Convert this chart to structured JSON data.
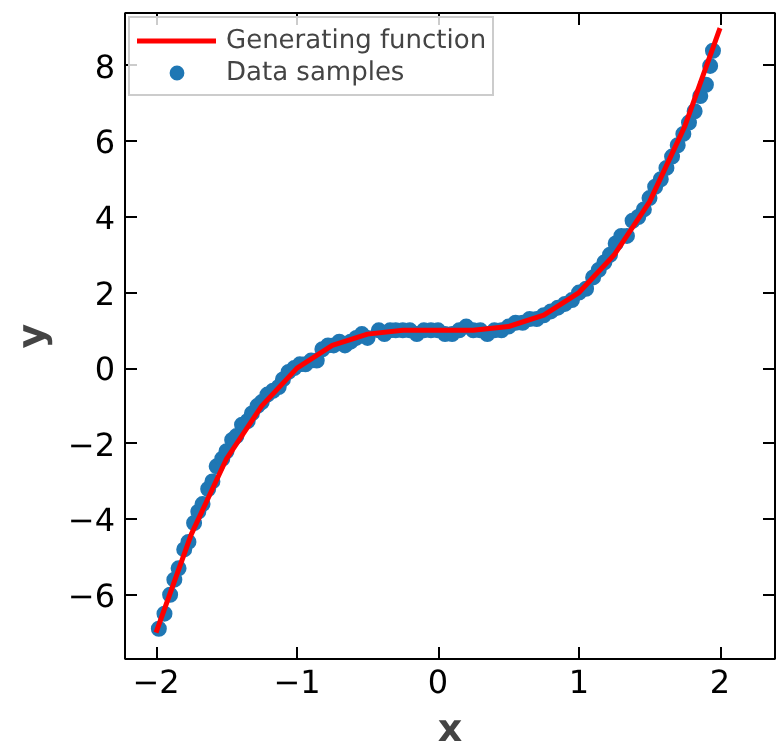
{
  "chart_data": {
    "type": "scatter",
    "xlabel": "x",
    "ylabel": "y",
    "xlim": [
      -2.22,
      2.39
    ],
    "ylim": [
      -7.7,
      9.4
    ],
    "xticks": [
      {
        "value": -2,
        "label": "−2"
      },
      {
        "value": -1,
        "label": "−1"
      },
      0,
      1,
      2
    ],
    "yticks": [
      {
        "value": -6,
        "label": "−6"
      },
      {
        "value": -4,
        "label": "−4"
      },
      {
        "value": -2,
        "label": "−2"
      },
      0,
      2,
      4,
      6,
      8
    ],
    "grid": false,
    "legend": "top left",
    "series": [
      {
        "name": "Generating function",
        "type": "line",
        "color": "#ff0000",
        "line_style": "solid",
        "x": [
          -2.0,
          -1.75,
          -1.5,
          -1.25,
          -1.0,
          -0.75,
          -0.5,
          -0.25,
          0.0,
          0.25,
          0.5,
          0.75,
          1.0,
          1.25,
          1.5,
          1.75,
          2.0
        ],
        "values": [
          -7.0,
          -4.4,
          -2.4,
          -1.0,
          0.0,
          0.6,
          0.9,
          1.0,
          1.0,
          1.0,
          1.1,
          1.4,
          2.0,
          3.0,
          4.4,
          6.4,
          9.0
        ]
      },
      {
        "name": "Data samples",
        "color": "#1f77b4",
        "marker": "circle",
        "x": [
          -1.98,
          -1.94,
          -1.9,
          -1.87,
          -1.84,
          -1.8,
          -1.77,
          -1.73,
          -1.7,
          -1.67,
          -1.63,
          -1.6,
          -1.57,
          -1.53,
          -1.5,
          -1.46,
          -1.43,
          -1.39,
          -1.35,
          -1.32,
          -1.28,
          -1.25,
          -1.21,
          -1.17,
          -1.13,
          -1.1,
          -1.06,
          -1.02,
          -0.98,
          -0.94,
          -0.9,
          -0.86,
          -0.82,
          -0.78,
          -0.74,
          -0.7,
          -0.66,
          -0.62,
          -0.58,
          -0.54,
          -0.5,
          -0.42,
          -0.38,
          -0.34,
          -0.3,
          -0.25,
          -0.2,
          -0.15,
          -0.1,
          -0.05,
          0.0,
          0.05,
          0.1,
          0.15,
          0.2,
          0.25,
          0.3,
          0.35,
          0.4,
          0.45,
          0.5,
          0.55,
          0.6,
          0.65,
          0.7,
          0.75,
          0.8,
          0.85,
          0.9,
          0.95,
          1.0,
          1.05,
          1.1,
          1.14,
          1.18,
          1.22,
          1.26,
          1.3,
          1.34,
          1.38,
          1.42,
          1.46,
          1.5,
          1.54,
          1.58,
          1.62,
          1.66,
          1.7,
          1.74,
          1.78,
          1.82,
          1.86,
          1.9,
          1.93,
          1.95
        ],
        "values": [
          -6.9,
          -6.5,
          -6.0,
          -5.6,
          -5.3,
          -4.8,
          -4.6,
          -4.1,
          -3.8,
          -3.6,
          -3.2,
          -3.0,
          -2.6,
          -2.4,
          -2.2,
          -1.9,
          -1.8,
          -1.5,
          -1.4,
          -1.2,
          -1.0,
          -0.9,
          -0.7,
          -0.6,
          -0.5,
          -0.3,
          -0.1,
          0.0,
          0.1,
          0.1,
          0.2,
          0.2,
          0.5,
          0.6,
          0.6,
          0.7,
          0.6,
          0.7,
          0.8,
          0.9,
          0.8,
          1.0,
          0.9,
          1.0,
          1.0,
          1.0,
          1.0,
          0.9,
          1.0,
          1.0,
          1.0,
          0.9,
          0.9,
          1.0,
          1.1,
          1.0,
          1.0,
          0.9,
          1.0,
          1.0,
          1.1,
          1.2,
          1.2,
          1.3,
          1.3,
          1.4,
          1.5,
          1.6,
          1.7,
          1.8,
          2.0,
          2.1,
          2.4,
          2.6,
          2.8,
          3.0,
          3.3,
          3.5,
          3.5,
          3.9,
          4.0,
          4.2,
          4.5,
          4.8,
          5.0,
          5.3,
          5.6,
          5.9,
          6.2,
          6.5,
          6.8,
          7.2,
          7.5,
          8.0,
          8.4
        ]
      }
    ]
  }
}
